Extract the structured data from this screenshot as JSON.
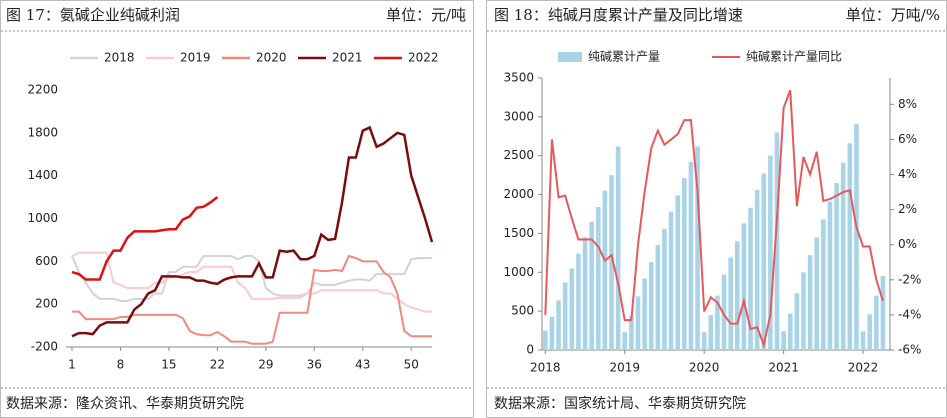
{
  "chart_data": [
    {
      "type": "line",
      "title": "图 17：氨碱企业纯碱利润",
      "unit": "单位：元/吨",
      "source": "数据来源：隆众资讯、华泰期货研究院",
      "x": [
        1,
        2,
        3,
        4,
        5,
        6,
        7,
        8,
        9,
        10,
        11,
        12,
        13,
        14,
        15,
        16,
        17,
        18,
        19,
        20,
        21,
        22,
        23,
        24,
        25,
        26,
        27,
        28,
        29,
        30,
        31,
        32,
        33,
        34,
        35,
        36,
        37,
        38,
        39,
        40,
        41,
        42,
        43,
        44,
        45,
        46,
        47,
        48,
        49,
        50,
        51,
        52,
        53
      ],
      "xlim": [
        1,
        53
      ],
      "xticks": [
        1,
        8,
        15,
        22,
        29,
        36,
        43,
        50
      ],
      "ylim": [
        -200,
        2200
      ],
      "yticks": [
        -200,
        200,
        600,
        1000,
        1400,
        1800,
        2200
      ],
      "series": [
        {
          "name": "2018",
          "color": "#d3d3d3",
          "values": [
            650,
            500,
            400,
            300,
            250,
            250,
            250,
            230,
            230,
            250,
            250,
            250,
            300,
            300,
            500,
            500,
            550,
            550,
            550,
            650,
            650,
            650,
            650,
            650,
            620,
            650,
            650,
            600,
            350,
            300,
            280,
            280,
            280,
            280,
            300,
            400,
            380,
            380,
            380,
            400,
            420,
            430,
            430,
            420,
            480,
            480,
            480,
            480,
            480,
            620,
            630,
            630,
            630
          ]
        },
        {
          "name": "2019",
          "color": "#f6cccc",
          "values": [
            650,
            680,
            680,
            680,
            680,
            680,
            400,
            380,
            350,
            350,
            350,
            350,
            400,
            400,
            450,
            450,
            480,
            500,
            500,
            550,
            550,
            550,
            550,
            550,
            400,
            350,
            250,
            250,
            250,
            250,
            260,
            260,
            260,
            260,
            300,
            300,
            330,
            330,
            330,
            330,
            330,
            330,
            330,
            330,
            330,
            300,
            300,
            250,
            200,
            170,
            150,
            130,
            130
          ]
        },
        {
          "name": "2020",
          "color": "#f08a80",
          "values": [
            130,
            130,
            60,
            60,
            60,
            60,
            60,
            80,
            80,
            100,
            100,
            100,
            100,
            100,
            100,
            100,
            70,
            -50,
            -80,
            -90,
            -90,
            -60,
            -100,
            -150,
            -150,
            -150,
            -170,
            -170,
            -170,
            -150,
            120,
            120,
            120,
            120,
            120,
            520,
            510,
            510,
            520,
            510,
            650,
            630,
            600,
            600,
            600,
            500,
            450,
            300,
            -50,
            -100,
            -100,
            -100,
            -100
          ]
        },
        {
          "name": "2021",
          "color": "#7b0c0c",
          "values": [
            -100,
            -70,
            -70,
            -80,
            0,
            30,
            30,
            30,
            30,
            150,
            200,
            300,
            330,
            460,
            460,
            460,
            450,
            450,
            420,
            420,
            400,
            390,
            430,
            450,
            460,
            460,
            460,
            580,
            450,
            450,
            700,
            690,
            700,
            620,
            620,
            650,
            850,
            800,
            810,
            1150,
            1570,
            1570,
            1820,
            1850,
            1670,
            1700,
            1750,
            1800,
            1780,
            1400,
            1200,
            1000,
            780
          ]
        },
        {
          "name": "2022",
          "color": "#e01010",
          "values": [
            500,
            480,
            430,
            430,
            430,
            600,
            700,
            700,
            820,
            880,
            880,
            880,
            880,
            890,
            900,
            900,
            990,
            1020,
            1100,
            1110,
            1150,
            1200,
            null,
            null,
            null,
            null,
            null,
            null,
            null,
            null,
            null,
            null,
            null,
            null,
            null,
            null,
            null,
            null,
            null,
            null,
            null,
            null,
            null,
            null,
            null,
            null,
            null,
            null,
            null,
            null,
            null,
            null,
            null
          ]
        }
      ]
    },
    {
      "type": "bar_line",
      "title": "图 18：纯碱月度累计产量及同比增速",
      "unit": "单位：万吨/%",
      "source": "数据来源：国家统计局、华泰期货研究院",
      "categories": [
        "2018",
        null,
        null,
        null,
        null,
        null,
        null,
        null,
        null,
        null,
        null,
        null,
        "2019",
        null,
        null,
        null,
        null,
        null,
        null,
        null,
        null,
        null,
        null,
        null,
        "2020",
        null,
        null,
        null,
        null,
        null,
        null,
        null,
        null,
        null,
        null,
        null,
        "2021",
        null,
        null,
        null,
        null,
        null,
        null,
        null,
        null,
        null,
        null,
        null,
        "2022",
        null,
        null,
        null
      ],
      "ylim": [
        0,
        3500
      ],
      "yticks": [
        0,
        500,
        1000,
        1500,
        2000,
        2500,
        3000,
        3500
      ],
      "y2lim": [
        -6,
        9.5
      ],
      "y2ticks": [
        {
          "value": -6,
          "label": "-6%"
        },
        {
          "value": -4,
          "label": "-4%"
        },
        {
          "value": -2,
          "label": "-2%"
        },
        {
          "value": 0,
          "label": "0%"
        },
        {
          "value": 2,
          "label": "2%"
        },
        {
          "value": 4,
          "label": "4%"
        },
        {
          "value": 6,
          "label": "6%"
        },
        {
          "value": 8,
          "label": "8%"
        }
      ],
      "series": [
        {
          "name": "纯碱累计产量",
          "type": "bar",
          "color": "#a9d4e8",
          "values": [
            250,
            430,
            640,
            870,
            1050,
            1240,
            1450,
            1650,
            1840,
            2050,
            2250,
            2620,
            230,
            440,
            690,
            920,
            1130,
            1350,
            1560,
            1780,
            1990,
            2210,
            2420,
            2620,
            230,
            450,
            700,
            970,
            1190,
            1400,
            1630,
            1830,
            2060,
            2270,
            2500,
            2800,
            240,
            470,
            730,
            1000,
            1220,
            1450,
            1680,
            1910,
            2150,
            2410,
            2660,
            2910,
            240,
            460,
            700,
            950
          ]
        },
        {
          "name": "纯碱累计产量同比",
          "type": "line",
          "axis": "y2",
          "color": "#e8585a",
          "values": [
            -4,
            6,
            2.7,
            2.8,
            1.5,
            0.3,
            0.3,
            0.3,
            -0.1,
            -0.9,
            -0.6,
            -2.2,
            -4.3,
            -4.3,
            0,
            3,
            5.5,
            6.5,
            5.7,
            6,
            6.3,
            7.1,
            7.1,
            3,
            -3.8,
            -3,
            -3.3,
            -4,
            -4.5,
            -4.5,
            -3.2,
            -4.8,
            -4.7,
            -5.7,
            -4,
            1.5,
            7.8,
            8.8,
            2.2,
            5,
            4,
            5.3,
            2.5,
            2.6,
            2.8,
            3,
            3.1,
            1,
            -0.1,
            -0.1,
            -2,
            -3.2
          ]
        }
      ]
    }
  ]
}
